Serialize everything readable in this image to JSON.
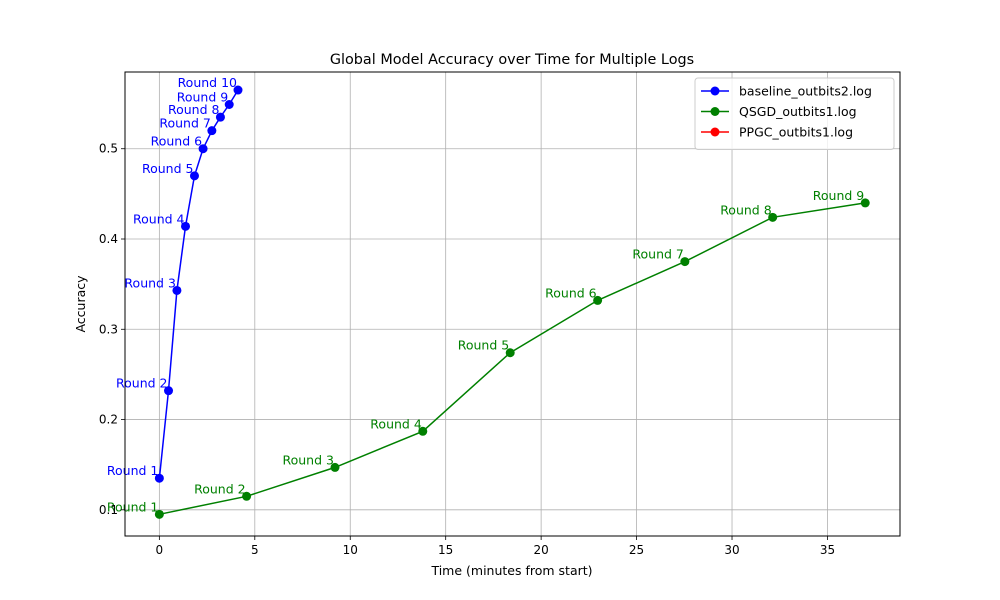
{
  "chart_data": {
    "type": "line",
    "title": "Global Model Accuracy over Time for Multiple Logs",
    "xlabel": "Time (minutes from start)",
    "ylabel": "Accuracy",
    "xlim": [
      -1.8,
      38.8
    ],
    "ylim": [
      0.071,
      0.585
    ],
    "xticks": [
      0,
      5,
      10,
      15,
      20,
      25,
      30,
      35
    ],
    "yticks": [
      0.1,
      0.2,
      0.3,
      0.4,
      0.5
    ],
    "ytick_labels": [
      "0.1",
      "0.2",
      "0.3",
      "0.4",
      "0.5"
    ],
    "grid": true,
    "legend_position": "top-right",
    "series": [
      {
        "name": "baseline_outbits2.log",
        "color": "#0000ff",
        "x": [
          0.0,
          0.48,
          0.92,
          1.37,
          1.84,
          2.29,
          2.75,
          3.2,
          3.66,
          4.12
        ],
        "y": [
          0.135,
          0.232,
          0.343,
          0.414,
          0.47,
          0.5,
          0.52,
          0.535,
          0.549,
          0.565
        ],
        "point_labels": [
          "Round 1",
          "Round 2",
          "Round 3",
          "Round 4",
          "Round 5",
          "Round 6",
          "Round 7",
          "Round 8",
          "Round 9",
          "Round 10"
        ]
      },
      {
        "name": "QSGD_outbits1.log",
        "color": "#008000",
        "x": [
          0.0,
          4.57,
          9.2,
          13.8,
          18.38,
          22.96,
          27.53,
          32.13,
          36.98
        ],
        "y": [
          0.095,
          0.115,
          0.147,
          0.187,
          0.274,
          0.332,
          0.375,
          0.424,
          0.44
        ],
        "point_labels": [
          "Round 1",
          "Round 2",
          "Round 3",
          "Round 4",
          "Round 5",
          "Round 6",
          "Round 7",
          "Round 8",
          "Round 9"
        ]
      },
      {
        "name": "PPGC_outbits1.log",
        "color": "#ff0000",
        "x": [],
        "y": [],
        "point_labels": []
      }
    ]
  }
}
